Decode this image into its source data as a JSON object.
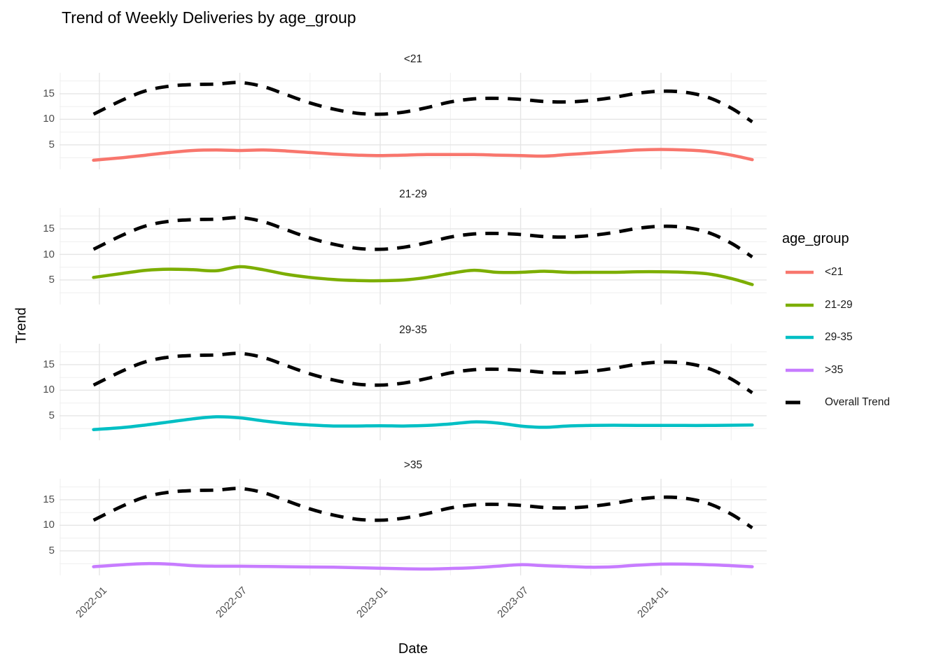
{
  "chart_data": {
    "type": "line",
    "title": "Trend of Weekly Deliveries by age_group",
    "xlabel": "Date",
    "ylabel": "Trend",
    "facet_variable": "age_group",
    "facets": [
      "<21",
      "21-29",
      "29-35",
      ">35"
    ],
    "layout": "facets stacked vertically, shared x axis, legend on right",
    "grid": true,
    "x_unit": "months since 2022-01",
    "x_tick_labels": [
      "2022-01",
      "2022-07",
      "2023-01",
      "2023-07",
      "2024-01"
    ],
    "x_tick_months": [
      0,
      6,
      12,
      18,
      24
    ],
    "x_minor_months": [
      3,
      9,
      15,
      21,
      27
    ],
    "y_ticks": [
      5,
      10,
      15
    ],
    "y_minor_ticks": [
      2.5,
      7.5,
      12.5,
      17.5
    ],
    "ylim": [
      0.2,
      19.1
    ],
    "x_months": [
      -0.25,
      1,
      2,
      3,
      4,
      5,
      6,
      7,
      8,
      9,
      10,
      11,
      12,
      13,
      14,
      15,
      16,
      17,
      18,
      19,
      20,
      21,
      22,
      23,
      24,
      25,
      26,
      27,
      27.9
    ],
    "series": [
      {
        "name": "<21",
        "facet": "<21",
        "color": "#F8766D",
        "linetype": "solid",
        "values": [
          2.0,
          2.5,
          3.0,
          3.5,
          3.9,
          4.0,
          3.9,
          4.0,
          3.8,
          3.5,
          3.2,
          3.0,
          2.9,
          3.0,
          3.1,
          3.1,
          3.1,
          3.0,
          2.9,
          2.8,
          3.1,
          3.4,
          3.7,
          4.0,
          4.1,
          4.0,
          3.7,
          3.0,
          2.1
        ]
      },
      {
        "name": "21-29",
        "facet": "21-29",
        "color": "#7CAE00",
        "linetype": "solid",
        "values": [
          5.5,
          6.3,
          6.9,
          7.1,
          7.0,
          6.8,
          7.6,
          7.0,
          6.1,
          5.5,
          5.1,
          4.9,
          4.85,
          5.0,
          5.5,
          6.3,
          6.9,
          6.5,
          6.5,
          6.7,
          6.5,
          6.5,
          6.5,
          6.6,
          6.6,
          6.5,
          6.2,
          5.3,
          4.1
        ]
      },
      {
        "name": "29-35",
        "facet": "29-35",
        "color": "#00BFC4",
        "linetype": "solid",
        "values": [
          2.3,
          2.7,
          3.2,
          3.8,
          4.4,
          4.8,
          4.6,
          4.0,
          3.5,
          3.2,
          3.0,
          3.0,
          3.05,
          3.0,
          3.1,
          3.4,
          3.8,
          3.6,
          3.0,
          2.75,
          3.0,
          3.1,
          3.15,
          3.1,
          3.1,
          3.1,
          3.1,
          3.15,
          3.2
        ]
      },
      {
        "name": ">35",
        "facet": ">35",
        "color": "#C77CFF",
        "linetype": "solid",
        "values": [
          1.9,
          2.3,
          2.5,
          2.4,
          2.1,
          2.0,
          2.0,
          1.95,
          1.9,
          1.85,
          1.8,
          1.7,
          1.6,
          1.5,
          1.45,
          1.55,
          1.7,
          2.0,
          2.3,
          2.1,
          1.95,
          1.8,
          1.9,
          2.2,
          2.4,
          2.4,
          2.3,
          2.1,
          1.9
        ]
      },
      {
        "name": "Overall Trend",
        "facet": "all",
        "color": "#000000",
        "linetype": "dashed",
        "values": [
          11.0,
          13.8,
          15.6,
          16.5,
          16.8,
          16.9,
          17.2,
          16.4,
          14.8,
          13.2,
          12.0,
          11.2,
          11.0,
          11.4,
          12.3,
          13.4,
          14.0,
          14.1,
          13.9,
          13.5,
          13.4,
          13.7,
          14.3,
          15.1,
          15.5,
          15.3,
          14.3,
          12.2,
          9.5
        ]
      }
    ],
    "legend": {
      "title": "age_group",
      "position": "right",
      "items": [
        {
          "label": "<21",
          "color": "#F8766D",
          "dashed": false
        },
        {
          "label": "21-29",
          "color": "#7CAE00",
          "dashed": false
        },
        {
          "label": "29-35",
          "color": "#00BFC4",
          "dashed": false
        },
        {
          "label": ">35",
          "color": "#C77CFF",
          "dashed": false
        },
        {
          "label": "Overall Trend",
          "color": "#000000",
          "dashed": true
        }
      ]
    },
    "colors": {
      "background": "#FFFFFF",
      "grid_major": "#E5E5E5",
      "grid_minor": "#EFEFEF",
      "tick_label": "#4D4D4D",
      "text": "#1A1A1A"
    }
  }
}
